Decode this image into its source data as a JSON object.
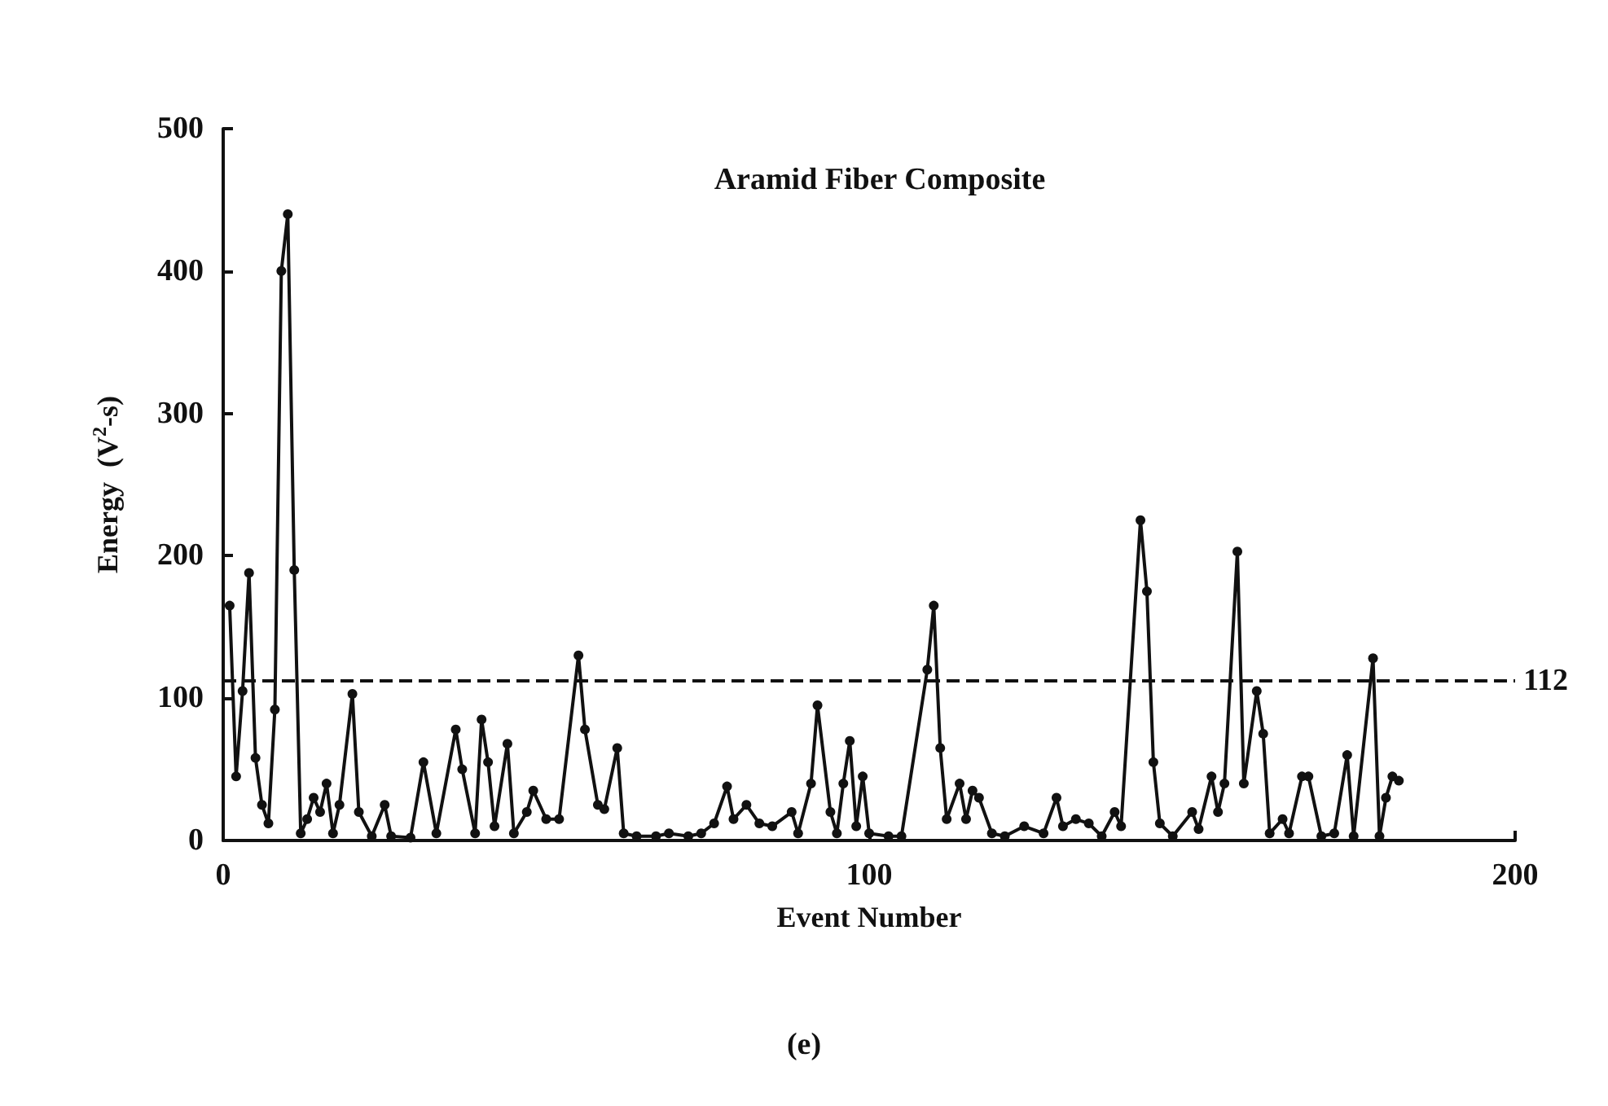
{
  "chart_data": {
    "type": "line",
    "title": "Aramid Fiber Composite",
    "xlabel": "Event Number",
    "ylabel": "Energy  (V$^{2}$-s)",
    "annotations": [
      "(e)"
    ],
    "x": [
      1,
      2,
      3,
      4,
      5,
      6,
      7,
      8,
      9,
      10,
      11,
      12,
      13,
      14,
      15,
      16,
      17,
      18,
      20,
      21,
      23,
      25,
      26,
      29,
      31,
      33,
      36,
      37,
      39,
      40,
      41,
      42,
      44,
      45,
      47,
      48,
      50,
      52,
      55,
      56,
      58,
      59,
      61,
      62,
      64,
      67,
      69,
      72,
      74,
      76,
      78,
      79,
      81,
      83,
      85,
      88,
      89,
      91,
      92,
      94,
      95,
      96,
      97,
      98,
      99,
      100,
      103,
      105,
      109,
      110,
      111,
      112,
      114,
      115,
      116,
      117,
      119,
      121,
      124,
      127,
      129,
      130,
      132,
      134,
      136,
      138,
      139,
      142,
      143,
      144,
      145,
      147,
      150,
      151,
      153,
      154,
      155,
      157,
      158,
      160,
      161,
      162,
      164,
      165,
      167,
      168,
      170,
      172,
      174,
      175,
      178,
      179,
      180,
      181,
      182
    ],
    "series": [
      {
        "color": "#111111",
        "values": [
          165,
          45,
          105,
          188,
          58,
          25,
          12,
          92,
          400,
          440,
          190,
          5,
          15,
          30,
          20,
          40,
          5,
          25,
          103,
          20,
          3,
          25,
          3,
          2,
          55,
          5,
          78,
          50,
          5,
          85,
          55,
          10,
          68,
          5,
          20,
          35,
          15,
          15,
          130,
          78,
          25,
          22,
          65,
          5,
          3,
          3,
          5,
          3,
          5,
          12,
          38,
          15,
          25,
          12,
          10,
          20,
          5,
          40,
          95,
          20,
          5,
          40,
          70,
          10,
          45,
          5,
          3,
          3,
          120,
          165,
          65,
          15,
          40,
          15,
          35,
          30,
          5,
          3,
          10,
          5,
          30,
          10,
          15,
          12,
          3,
          20,
          10,
          225,
          175,
          55,
          12,
          3,
          20,
          8,
          45,
          20,
          40,
          203,
          40,
          105,
          75,
          5,
          15,
          5,
          45,
          45,
          3,
          5,
          60,
          3,
          128,
          3,
          30,
          45,
          42
        ]
      }
    ],
    "xlim": [
      0,
      200
    ],
    "xticks": [
      0,
      100,
      200
    ],
    "ylim": [
      0,
      500
    ],
    "yticks": [
      0,
      100,
      200,
      300,
      400,
      500
    ],
    "ref_lines": [
      {
        "axis": "y",
        "value": 112,
        "label": "112",
        "line_style": "dashed",
        "color": "#111111"
      }
    ],
    "grid": false,
    "marker": "circle",
    "line_style": "solid"
  }
}
